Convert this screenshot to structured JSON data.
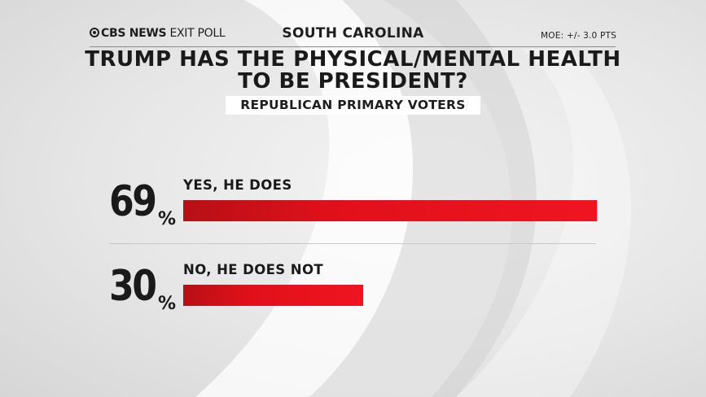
{
  "header": {
    "brand_bold": "CBS NEWS",
    "brand_light": "EXIT POLL",
    "state": "SOUTH CAROLINA",
    "moe": "MOE: +/- 3.0 PTS"
  },
  "chart_data": {
    "type": "bar",
    "orientation": "horizontal",
    "title_line1": "TRUMP HAS THE PHYSICAL/MENTAL HEALTH",
    "title_line2": "TO BE PRESIDENT?",
    "subtitle": "REPUBLICAN PRIMARY VOTERS",
    "unit": "%",
    "categories": [
      "YES, HE DOES",
      "NO, HE DOES NOT"
    ],
    "values": [
      69,
      30
    ],
    "value_labels": [
      "69",
      "30"
    ],
    "xlim": [
      0,
      69
    ],
    "bar_color": "#e0101a"
  }
}
